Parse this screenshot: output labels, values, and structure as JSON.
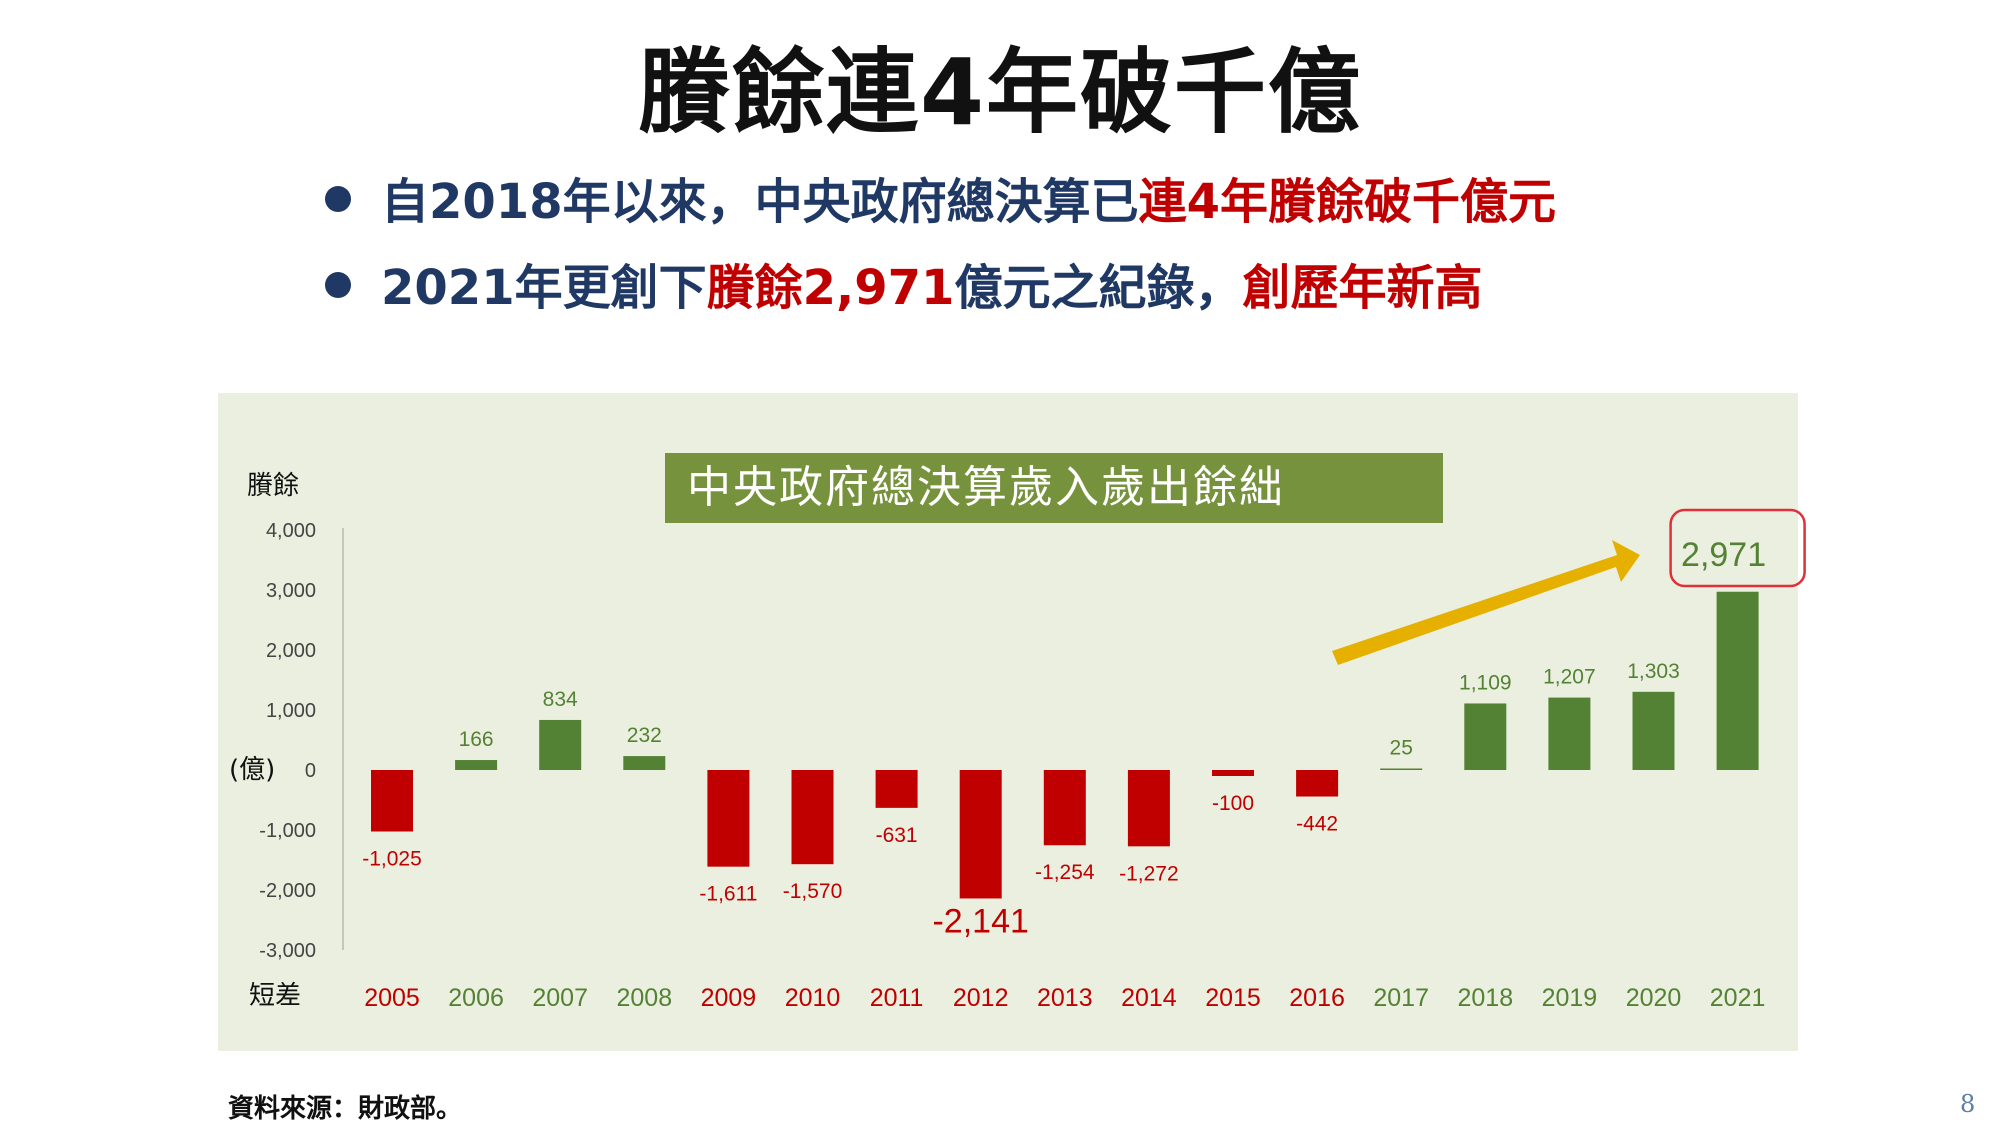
{
  "title": "賸餘連4年破千億",
  "bullets": [
    {
      "a": "自2018年以來，中央政府總決算已",
      "b": "連4年賸餘破千億元",
      "c": "",
      "d": ""
    },
    {
      "a": "2021年更創下",
      "b": "賸餘2,971",
      "c": "億元之紀錄，",
      "d": "創歷年新高"
    }
  ],
  "footer": "資料來源：財政部。",
  "page_number": "8",
  "colors": {
    "surplus": "#548235",
    "deficit": "#c00000",
    "arrow": "#e6b000",
    "panel": "#ebefdf",
    "title_bg": "#77923c",
    "highlight_border": "#e0303a"
  },
  "chart_data": {
    "type": "bar",
    "title": "中央政府總決算歲入歲出餘絀",
    "ylabel_top": "賸餘",
    "ylabel_unit": "(億)",
    "ylabel_bottom": "短差",
    "ylim": [
      -3000,
      4000
    ],
    "yticks": [
      4000,
      3000,
      2000,
      1000,
      0,
      -1000,
      -2000,
      -3000
    ],
    "ytick_labels": [
      "4,000",
      "3,000",
      "2,000",
      "1,000",
      "0",
      "-1,000",
      "-2,000",
      "-3,000"
    ],
    "categories": [
      "2005",
      "2006",
      "2007",
      "2008",
      "2009",
      "2010",
      "2011",
      "2012",
      "2013",
      "2014",
      "2015",
      "2016",
      "2017",
      "2018",
      "2019",
      "2020",
      "2021"
    ],
    "values": [
      -1025,
      166,
      834,
      232,
      -1611,
      -1570,
      -631,
      -2141,
      -1254,
      -1272,
      -100,
      -442,
      25,
      1109,
      1207,
      1303,
      2971
    ],
    "value_labels": [
      "-1,025",
      "166",
      "834",
      "232",
      "-1,611",
      "-1,570",
      "-631",
      "-2,141",
      "-1,254",
      "-1,272",
      "-100",
      "-442",
      "25",
      "1,109",
      "1,207",
      "1,303",
      "2,971"
    ],
    "highlight": {
      "label": "2,971"
    },
    "grid": false,
    "legend": "none"
  }
}
